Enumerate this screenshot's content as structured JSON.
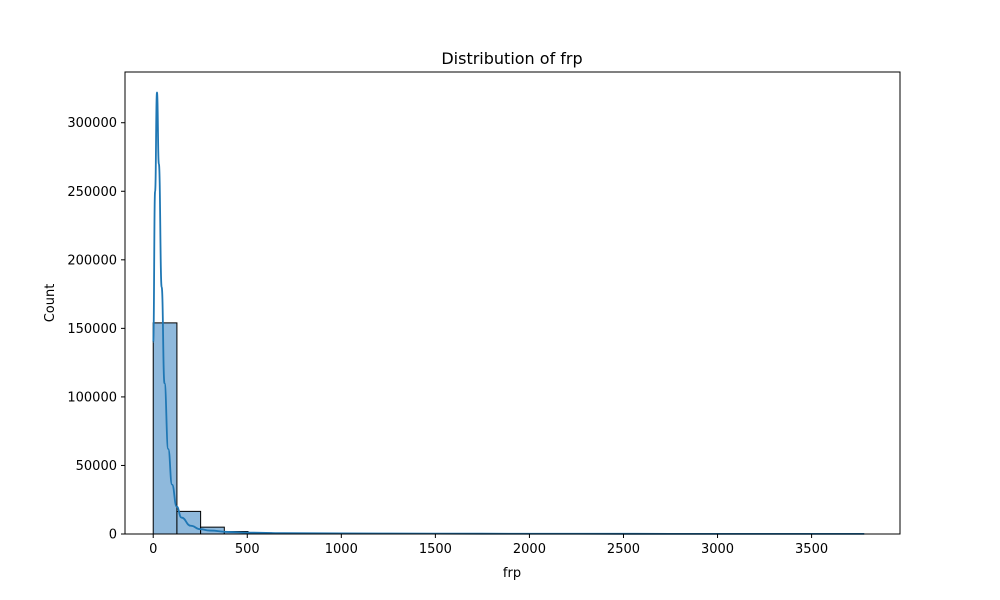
{
  "chart_data": {
    "type": "bar",
    "subtype": "histogram-with-kde",
    "title": "Distribution of frp",
    "xlabel": "frp",
    "ylabel": "Count",
    "xlim": [
      -150,
      3970
    ],
    "ylim": [
      0,
      337000
    ],
    "x_ticks": [
      0,
      500,
      1000,
      1500,
      2000,
      2500,
      3000,
      3500
    ],
    "y_ticks": [
      0,
      50000,
      100000,
      150000,
      200000,
      250000,
      300000
    ],
    "x_tick_labels": [
      "0",
      "500",
      "1000",
      "1500",
      "2000",
      "2500",
      "3000",
      "3500"
    ],
    "y_tick_labels": [
      "0",
      "50000",
      "100000",
      "150000",
      "200000",
      "250000",
      "300000"
    ],
    "grid": false,
    "colors": {
      "bar_fill": "#8fb9dc",
      "bar_edge": "#000000",
      "kde_line": "#1f77b4"
    },
    "bins": [
      {
        "x0": 0,
        "x1": 126,
        "count": 154000
      },
      {
        "x0": 126,
        "x1": 252,
        "count": 16500
      },
      {
        "x0": 252,
        "x1": 378,
        "count": 5000
      },
      {
        "x0": 378,
        "x1": 504,
        "count": 1800
      },
      {
        "x0": 504,
        "x1": 630,
        "count": 800
      },
      {
        "x0": 630,
        "x1": 756,
        "count": 400
      },
      {
        "x0": 756,
        "x1": 882,
        "count": 250
      },
      {
        "x0": 882,
        "x1": 1008,
        "count": 150
      },
      {
        "x0": 1008,
        "x1": 1134,
        "count": 100
      },
      {
        "x0": 1134,
        "x1": 1260,
        "count": 60
      },
      {
        "x0": 1260,
        "x1": 1386,
        "count": 40
      },
      {
        "x0": 1386,
        "x1": 1512,
        "count": 30
      },
      {
        "x0": 1512,
        "x1": 1638,
        "count": 20
      },
      {
        "x0": 1638,
        "x1": 1764,
        "count": 15
      },
      {
        "x0": 1764,
        "x1": 1890,
        "count": 10
      },
      {
        "x0": 1890,
        "x1": 2016,
        "count": 8
      },
      {
        "x0": 2016,
        "x1": 2142,
        "count": 6
      },
      {
        "x0": 2142,
        "x1": 2268,
        "count": 5
      },
      {
        "x0": 2268,
        "x1": 2394,
        "count": 4
      },
      {
        "x0": 2394,
        "x1": 2520,
        "count": 3
      },
      {
        "x0": 2520,
        "x1": 2646,
        "count": 3
      },
      {
        "x0": 2646,
        "x1": 2772,
        "count": 2
      },
      {
        "x0": 2772,
        "x1": 2898,
        "count": 2
      },
      {
        "x0": 2898,
        "x1": 3024,
        "count": 2
      },
      {
        "x0": 3024,
        "x1": 3150,
        "count": 1
      },
      {
        "x0": 3150,
        "x1": 3276,
        "count": 1
      },
      {
        "x0": 3276,
        "x1": 3402,
        "count": 1
      },
      {
        "x0": 3402,
        "x1": 3528,
        "count": 1
      },
      {
        "x0": 3528,
        "x1": 3654,
        "count": 1
      },
      {
        "x0": 3654,
        "x1": 3780,
        "count": 1
      }
    ],
    "kde": {
      "x": [
        0,
        10,
        20,
        30,
        45,
        60,
        80,
        100,
        125,
        150,
        200,
        250,
        300,
        400,
        500,
        700,
        1000,
        1500,
        2000,
        2500,
        3000,
        3500,
        3780
      ],
      "y": [
        140000,
        250000,
        322000,
        270000,
        180000,
        110000,
        62000,
        36000,
        20000,
        12000,
        6000,
        3500,
        2500,
        1500,
        1000,
        600,
        400,
        250,
        180,
        130,
        100,
        80,
        70
      ]
    }
  }
}
